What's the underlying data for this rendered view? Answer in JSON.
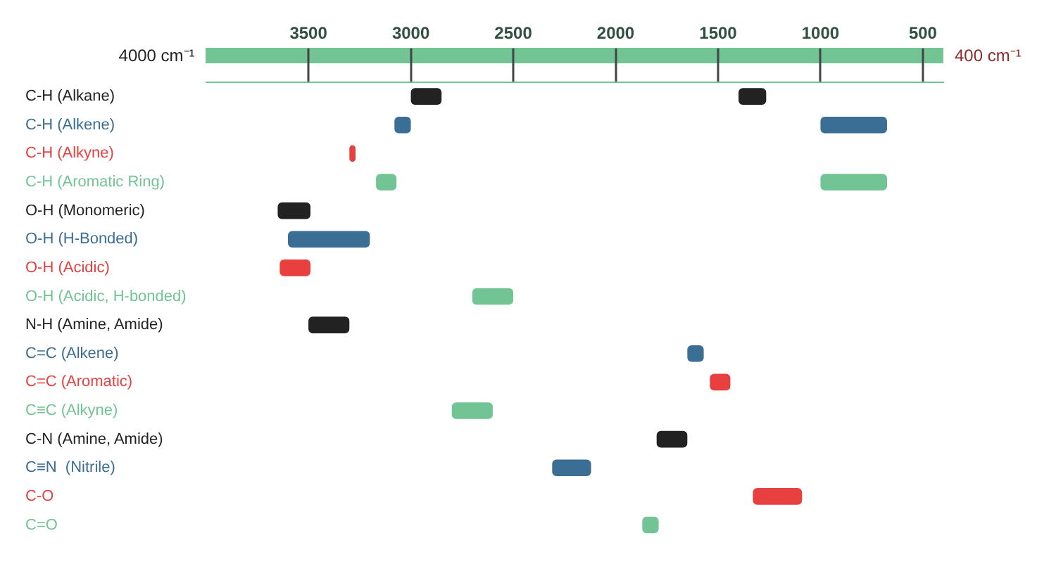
{
  "chart_data": {
    "type": "bar",
    "orientation": "horizontal",
    "categories": [
      "C-H (Alkane)",
      "C-H (Alkene)",
      "C-H (Alkyne)",
      "C-H (Aromatic Ring)",
      "O-H (Monomeric)",
      "O-H (H-Bonded)",
      "O-H (Acidic)",
      "O-H (Acidic, H-bonded)",
      "N-H (Amine, Amide)",
      "C=C (Alkene)",
      "C=C (Aromatic)",
      "C≡C (Alkyne)",
      "C-N (Amine, Amide)",
      "C≡N  (Nitrile)",
      "C-O",
      "C=O"
    ],
    "series": [
      {
        "base": [
          2850,
          3000,
          3270,
          3070,
          3490,
          3200,
          3490,
          2500,
          3300,
          1570,
          1440,
          2600,
          1650,
          2120,
          1090,
          1790
        ],
        "values": [
          150,
          80,
          30,
          100,
          160,
          400,
          150,
          200,
          200,
          80,
          100,
          200,
          150,
          190,
          240,
          80
        ],
        "colors": [
          "#222222",
          "#3b6e94",
          "#e8403f",
          "#72c495",
          "#222222",
          "#3b6e94",
          "#e8403f",
          "#72c495",
          "#222222",
          "#3b6e94",
          "#e8403f",
          "#72c495",
          "#222222",
          "#3b6e94",
          "#e8403f",
          "#72c495"
        ]
      },
      {
        "base": [
          1265,
          675,
          null,
          675,
          null,
          null,
          null,
          null,
          null,
          null,
          null,
          null,
          null,
          null,
          null,
          null
        ],
        "values": [
          135,
          325,
          null,
          325,
          null,
          null,
          null,
          null,
          null,
          null,
          null,
          null,
          null,
          null,
          null,
          null
        ],
        "colors": [
          "#222222",
          "#3b6e94",
          null,
          "#72c495",
          null,
          null,
          null,
          null,
          null,
          null,
          null,
          null,
          null,
          null,
          null,
          null
        ]
      }
    ],
    "xlim": [
      4000,
      400
    ],
    "xticks": [
      3500,
      3000,
      2500,
      2000,
      1500,
      1000,
      500
    ],
    "annotations": [
      "4000 cm⁻¹",
      "400 cm⁻¹"
    ],
    "grid": false,
    "legend": false
  }
}
